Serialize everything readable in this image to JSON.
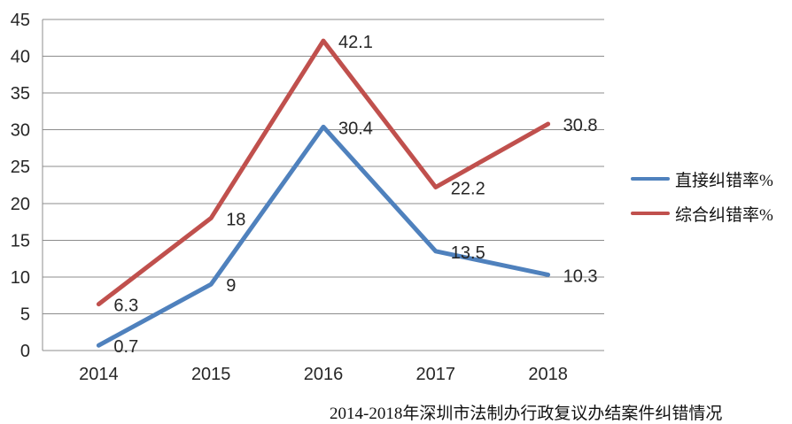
{
  "chart_data": {
    "type": "line",
    "title": "2014-2018年深圳市法制办行政复议办结案件纠错情况",
    "categories": [
      "2014",
      "2015",
      "2016",
      "2017",
      "2018"
    ],
    "series": [
      {
        "name": "直接纠错率%",
        "color": "#4F81BD",
        "values": [
          0.7,
          9,
          30.4,
          13.5,
          10.3
        ]
      },
      {
        "name": "综合纠错率%",
        "color": "#C0504D",
        "values": [
          6.3,
          18,
          42.1,
          22.2,
          30.8
        ]
      }
    ],
    "ylim": [
      0,
      45
    ],
    "ytick_step": 5,
    "ytick_labels": [
      "0",
      "5",
      "10",
      "15",
      "20",
      "25",
      "30",
      "35",
      "40",
      "45"
    ],
    "xlabel": "",
    "ylabel": "",
    "grid": true,
    "data_labels": true,
    "legend_position": "right",
    "markers": false
  },
  "colors": {
    "background": "#FFFFFF",
    "gridline": "#8C8C8C",
    "axis_line": "#8C8C8C",
    "label_text": "#262626"
  }
}
